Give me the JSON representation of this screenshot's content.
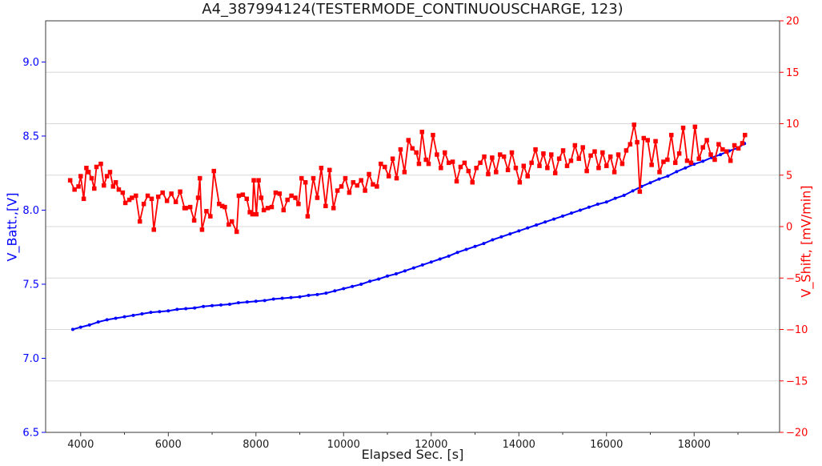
{
  "chart_data": {
    "type": "line",
    "title": "A4_387994124(TESTERMODE_CONTINUOUSCHARGE, 123)",
    "xlabel": "Elapsed Sec. [s]",
    "xlim": [
      3200,
      19950
    ],
    "grid": {
      "orientation": "horizontal",
      "aligned_to": "right-axis-ticks",
      "color": "#d8d8d8"
    },
    "background_color": "#ffffff",
    "spine_color": "#3a3a3a",
    "xticks": [
      [
        4000,
        "4000"
      ],
      [
        6000,
        "6000"
      ],
      [
        8000,
        "8000"
      ],
      [
        10000,
        "10000"
      ],
      [
        12000,
        "12000"
      ],
      [
        14000,
        "14000"
      ],
      [
        16000,
        "16000"
      ],
      [
        18000,
        "18000"
      ]
    ],
    "xminorticks": [
      5000,
      7000,
      9000,
      11000,
      13000,
      15000,
      17000,
      19000
    ],
    "left_axis": {
      "label": "V_Batt.,[V]",
      "color": "#0000ff",
      "lim": [
        6.5,
        9.278
      ],
      "ticks": [
        [
          6.5,
          "6.5"
        ],
        [
          7.0,
          "7.0"
        ],
        [
          7.5,
          "7.5"
        ],
        [
          8.0,
          "8.0"
        ],
        [
          8.5,
          "8.5"
        ],
        [
          9.0,
          "9.0"
        ]
      ]
    },
    "right_axis": {
      "label": "V_Shift, [mV/min]",
      "color": "#ff0000",
      "lim": [
        -20,
        20
      ],
      "ticks": [
        [
          20,
          "20"
        ],
        [
          15,
          "15"
        ],
        [
          10,
          "10"
        ],
        [
          5,
          "5"
        ],
        [
          0,
          "0"
        ],
        [
          -5,
          "−5"
        ],
        [
          -10,
          "−10"
        ],
        [
          -15,
          "−15"
        ],
        [
          -20,
          "−20"
        ]
      ]
    },
    "series": [
      {
        "name": "V_Batt",
        "axis": "left",
        "color": "#0000ff",
        "marker": "circle",
        "marker_size": 4,
        "line_width": 2,
        "points": [
          [
            3820,
            7.195
          ],
          [
            4000,
            7.21
          ],
          [
            4200,
            7.225
          ],
          [
            4400,
            7.245
          ],
          [
            4600,
            7.26
          ],
          [
            4800,
            7.27
          ],
          [
            5000,
            7.28
          ],
          [
            5200,
            7.29
          ],
          [
            5400,
            7.3
          ],
          [
            5600,
            7.31
          ],
          [
            5800,
            7.315
          ],
          [
            6000,
            7.32
          ],
          [
            6200,
            7.33
          ],
          [
            6400,
            7.335
          ],
          [
            6600,
            7.34
          ],
          [
            6800,
            7.35
          ],
          [
            7000,
            7.355
          ],
          [
            7200,
            7.36
          ],
          [
            7400,
            7.365
          ],
          [
            7600,
            7.375
          ],
          [
            7800,
            7.38
          ],
          [
            8000,
            7.385
          ],
          [
            8200,
            7.39
          ],
          [
            8400,
            7.4
          ],
          [
            8600,
            7.405
          ],
          [
            8800,
            7.41
          ],
          [
            9000,
            7.415
          ],
          [
            9200,
            7.425
          ],
          [
            9400,
            7.43
          ],
          [
            9600,
            7.44
          ],
          [
            9800,
            7.455
          ],
          [
            10000,
            7.47
          ],
          [
            10200,
            7.485
          ],
          [
            10400,
            7.5
          ],
          [
            10600,
            7.52
          ],
          [
            10800,
            7.535
          ],
          [
            11000,
            7.555
          ],
          [
            11200,
            7.57
          ],
          [
            11400,
            7.59
          ],
          [
            11600,
            7.61
          ],
          [
            11800,
            7.63
          ],
          [
            12000,
            7.65
          ],
          [
            12200,
            7.67
          ],
          [
            12400,
            7.69
          ],
          [
            12600,
            7.715
          ],
          [
            12800,
            7.735
          ],
          [
            13000,
            7.755
          ],
          [
            13200,
            7.775
          ],
          [
            13400,
            7.8
          ],
          [
            13600,
            7.82
          ],
          [
            13800,
            7.84
          ],
          [
            14000,
            7.86
          ],
          [
            14200,
            7.88
          ],
          [
            14400,
            7.9
          ],
          [
            14600,
            7.92
          ],
          [
            14800,
            7.94
          ],
          [
            15000,
            7.96
          ],
          [
            15200,
            7.98
          ],
          [
            15400,
            8.0
          ],
          [
            15600,
            8.02
          ],
          [
            15800,
            8.04
          ],
          [
            16000,
            8.055
          ],
          [
            16200,
            8.08
          ],
          [
            16400,
            8.1
          ],
          [
            16600,
            8.13
          ],
          [
            16800,
            8.16
          ],
          [
            17000,
            8.185
          ],
          [
            17200,
            8.21
          ],
          [
            17400,
            8.23
          ],
          [
            17600,
            8.26
          ],
          [
            17800,
            8.285
          ],
          [
            18000,
            8.31
          ],
          [
            18200,
            8.33
          ],
          [
            18400,
            8.355
          ],
          [
            18600,
            8.375
          ],
          [
            18800,
            8.4
          ],
          [
            19000,
            8.42
          ],
          [
            19150,
            8.45
          ]
        ]
      },
      {
        "name": "V_Shift",
        "axis": "right",
        "color": "#ff0000",
        "marker": "square",
        "marker_size": 5.5,
        "line_width": 1.8,
        "points": [
          [
            3760,
            4.5
          ],
          [
            3860,
            3.6
          ],
          [
            3950,
            3.9
          ],
          [
            4000,
            4.9
          ],
          [
            4070,
            2.7
          ],
          [
            4130,
            5.7
          ],
          [
            4180,
            5.3
          ],
          [
            4250,
            4.7
          ],
          [
            4310,
            3.7
          ],
          [
            4360,
            5.8
          ],
          [
            4460,
            6.1
          ],
          [
            4530,
            4.0
          ],
          [
            4600,
            4.9
          ],
          [
            4670,
            5.3
          ],
          [
            4740,
            3.9
          ],
          [
            4800,
            4.3
          ],
          [
            4870,
            3.6
          ],
          [
            4960,
            3.3
          ],
          [
            5020,
            2.3
          ],
          [
            5110,
            2.6
          ],
          [
            5170,
            2.8
          ],
          [
            5260,
            3.0
          ],
          [
            5350,
            0.5
          ],
          [
            5440,
            2.2
          ],
          [
            5530,
            3.0
          ],
          [
            5620,
            2.7
          ],
          [
            5670,
            -0.3
          ],
          [
            5770,
            2.9
          ],
          [
            5870,
            3.3
          ],
          [
            5970,
            2.5
          ],
          [
            6070,
            3.2
          ],
          [
            6170,
            2.4
          ],
          [
            6270,
            3.4
          ],
          [
            6370,
            1.8
          ],
          [
            6400,
            1.8
          ],
          [
            6500,
            1.9
          ],
          [
            6590,
            0.6
          ],
          [
            6680,
            2.8
          ],
          [
            6720,
            4.7
          ],
          [
            6770,
            -0.3
          ],
          [
            6870,
            1.5
          ],
          [
            6960,
            1.0
          ],
          [
            7040,
            5.4
          ],
          [
            7160,
            2.2
          ],
          [
            7230,
            2.0
          ],
          [
            7290,
            1.9
          ],
          [
            7380,
            0.2
          ],
          [
            7450,
            0.5
          ],
          [
            7560,
            -0.5
          ],
          [
            7610,
            3.0
          ],
          [
            7700,
            3.1
          ],
          [
            7790,
            2.7
          ],
          [
            7860,
            1.4
          ],
          [
            7920,
            1.2
          ],
          [
            7950,
            4.5
          ],
          [
            8010,
            1.2
          ],
          [
            8060,
            4.5
          ],
          [
            8120,
            2.8
          ],
          [
            8180,
            1.6
          ],
          [
            8270,
            1.8
          ],
          [
            8360,
            1.9
          ],
          [
            8450,
            3.3
          ],
          [
            8540,
            3.2
          ],
          [
            8630,
            1.6
          ],
          [
            8720,
            2.6
          ],
          [
            8810,
            3.0
          ],
          [
            8900,
            2.8
          ],
          [
            8970,
            2.2
          ],
          [
            9040,
            4.7
          ],
          [
            9130,
            4.3
          ],
          [
            9180,
            1.0
          ],
          [
            9310,
            4.7
          ],
          [
            9400,
            2.8
          ],
          [
            9490,
            5.7
          ],
          [
            9590,
            2.0
          ],
          [
            9680,
            5.5
          ],
          [
            9770,
            1.8
          ],
          [
            9860,
            3.5
          ],
          [
            9950,
            3.9
          ],
          [
            10040,
            4.7
          ],
          [
            10130,
            3.3
          ],
          [
            10220,
            4.3
          ],
          [
            10310,
            4.0
          ],
          [
            10400,
            4.5
          ],
          [
            10490,
            3.5
          ],
          [
            10580,
            5.1
          ],
          [
            10670,
            4.1
          ],
          [
            10760,
            3.9
          ],
          [
            10850,
            6.1
          ],
          [
            10940,
            5.8
          ],
          [
            11030,
            4.9
          ],
          [
            11120,
            6.6
          ],
          [
            11210,
            4.7
          ],
          [
            11300,
            7.5
          ],
          [
            11390,
            5.3
          ],
          [
            11480,
            8.4
          ],
          [
            11570,
            7.6
          ],
          [
            11660,
            7.2
          ],
          [
            11720,
            6.1
          ],
          [
            11790,
            9.2
          ],
          [
            11880,
            6.5
          ],
          [
            11940,
            6.1
          ],
          [
            12040,
            8.9
          ],
          [
            12130,
            7.0
          ],
          [
            12220,
            5.7
          ],
          [
            12310,
            7.2
          ],
          [
            12400,
            6.2
          ],
          [
            12490,
            6.3
          ],
          [
            12580,
            4.4
          ],
          [
            12670,
            5.8
          ],
          [
            12760,
            6.2
          ],
          [
            12850,
            5.4
          ],
          [
            12940,
            4.3
          ],
          [
            13030,
            5.7
          ],
          [
            13120,
            6.2
          ],
          [
            13210,
            6.8
          ],
          [
            13300,
            5.1
          ],
          [
            13390,
            6.7
          ],
          [
            13480,
            5.3
          ],
          [
            13570,
            7.0
          ],
          [
            13660,
            6.8
          ],
          [
            13750,
            5.5
          ],
          [
            13840,
            7.2
          ],
          [
            13930,
            5.7
          ],
          [
            14020,
            4.3
          ],
          [
            14110,
            5.9
          ],
          [
            14200,
            4.9
          ],
          [
            14290,
            6.2
          ],
          [
            14380,
            7.5
          ],
          [
            14470,
            5.9
          ],
          [
            14560,
            7.1
          ],
          [
            14650,
            5.7
          ],
          [
            14740,
            7.0
          ],
          [
            14830,
            5.2
          ],
          [
            14920,
            6.6
          ],
          [
            15010,
            7.4
          ],
          [
            15100,
            5.9
          ],
          [
            15190,
            6.4
          ],
          [
            15280,
            7.9
          ],
          [
            15370,
            6.6
          ],
          [
            15460,
            7.7
          ],
          [
            15550,
            5.4
          ],
          [
            15640,
            6.9
          ],
          [
            15730,
            7.3
          ],
          [
            15820,
            5.7
          ],
          [
            15910,
            7.2
          ],
          [
            16000,
            5.9
          ],
          [
            16090,
            6.8
          ],
          [
            16180,
            5.3
          ],
          [
            16270,
            7.0
          ],
          [
            16360,
            6.1
          ],
          [
            16450,
            7.4
          ],
          [
            16540,
            8.0
          ],
          [
            16630,
            9.9
          ],
          [
            16700,
            8.2
          ],
          [
            16760,
            3.4
          ],
          [
            16850,
            8.6
          ],
          [
            16940,
            8.4
          ],
          [
            17030,
            6.0
          ],
          [
            17120,
            8.3
          ],
          [
            17210,
            5.3
          ],
          [
            17300,
            6.3
          ],
          [
            17390,
            6.5
          ],
          [
            17480,
            8.9
          ],
          [
            17570,
            6.2
          ],
          [
            17660,
            7.1
          ],
          [
            17750,
            9.6
          ],
          [
            17840,
            6.4
          ],
          [
            17930,
            6.2
          ],
          [
            18020,
            9.7
          ],
          [
            18110,
            6.6
          ],
          [
            18200,
            7.7
          ],
          [
            18290,
            8.4
          ],
          [
            18380,
            7.0
          ],
          [
            18470,
            6.5
          ],
          [
            18560,
            8.0
          ],
          [
            18650,
            7.5
          ],
          [
            18740,
            7.3
          ],
          [
            18830,
            6.4
          ],
          [
            18920,
            7.9
          ],
          [
            19010,
            7.6
          ],
          [
            19100,
            8.1
          ],
          [
            19160,
            8.9
          ]
        ]
      }
    ]
  }
}
